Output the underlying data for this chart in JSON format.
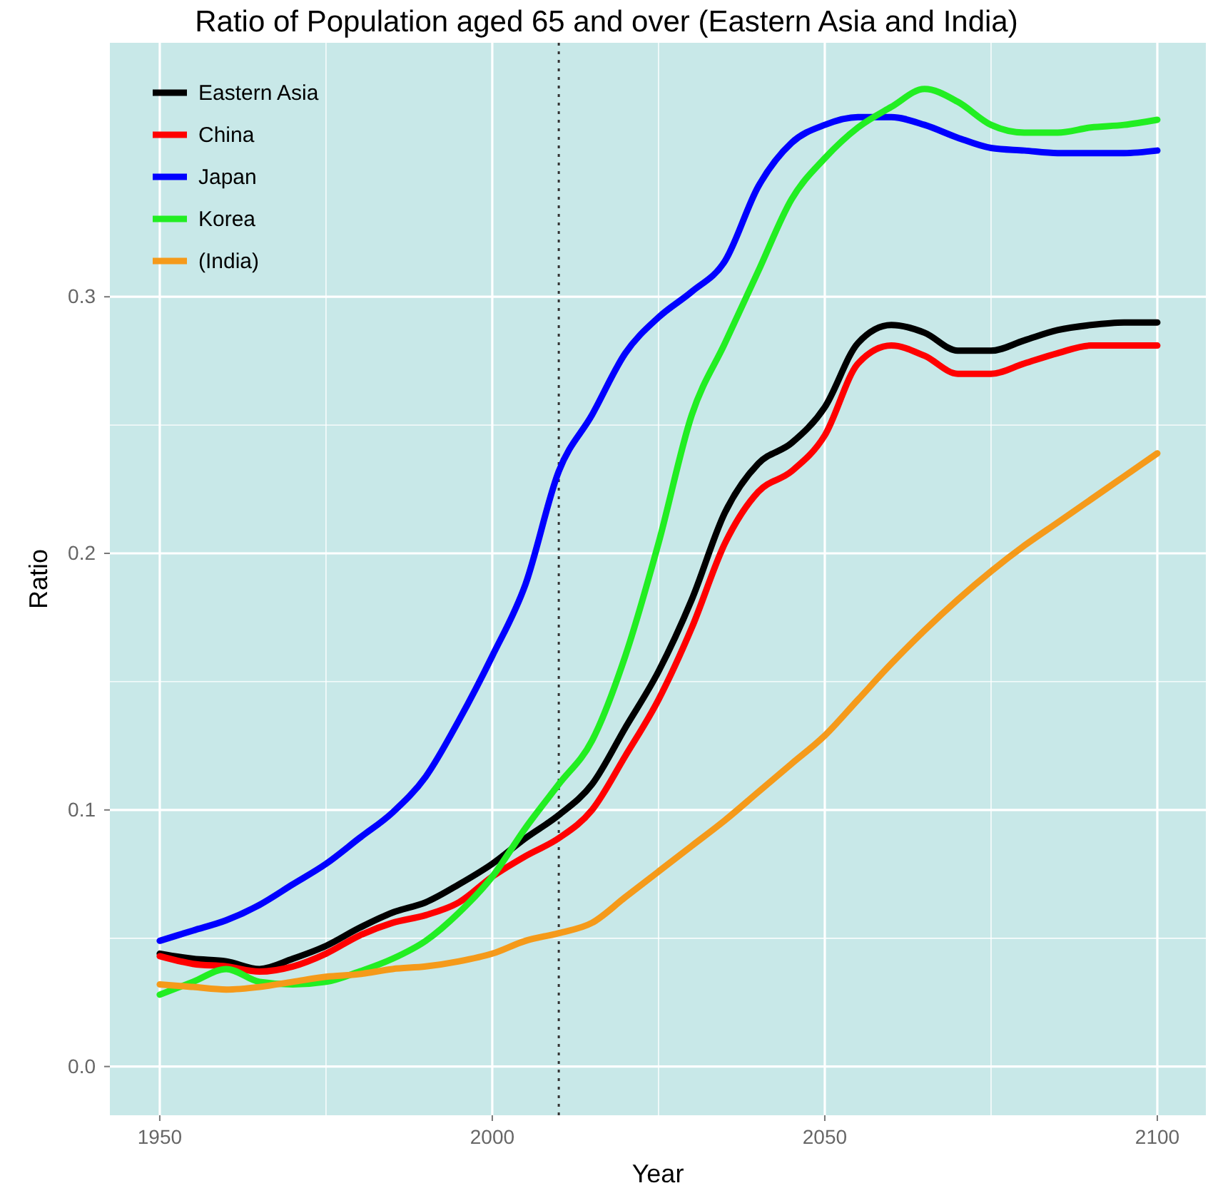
{
  "chart_data": {
    "type": "line",
    "title": "Ratio of Population aged 65 and over (Eastern Asia and India)",
    "xlabel": "Year",
    "ylabel": "Ratio",
    "xlim": [
      1942.5,
      2107.3
    ],
    "ylim": [
      -0.019,
      0.399
    ],
    "xticks": [
      1950,
      2000,
      2050,
      2100
    ],
    "yticks": [
      {
        "value": 0,
        "label": "0.0"
      },
      0.1,
      0.2,
      0.3
    ],
    "x": [
      1950,
      1955,
      1960,
      1965,
      1970,
      1975,
      1980,
      1985,
      1990,
      1995,
      2000,
      2005,
      2010,
      2015,
      2020,
      2025,
      2030,
      2035,
      2040,
      2045,
      2050,
      2055,
      2060,
      2065,
      2070,
      2075,
      2080,
      2085,
      2090,
      2095,
      2100
    ],
    "series": [
      {
        "name": "Eastern Asia",
        "color": "#000000",
        "values": [
          0.044,
          0.042,
          0.041,
          0.038,
          0.042,
          0.047,
          0.054,
          0.06,
          0.064,
          0.071,
          0.079,
          0.089,
          0.098,
          0.11,
          0.132,
          0.154,
          0.182,
          0.216,
          0.235,
          0.243,
          0.257,
          0.282,
          0.289,
          0.286,
          0.279,
          0.279,
          0.283,
          0.287,
          0.289,
          0.29,
          0.29
        ]
      },
      {
        "name": "China",
        "color": "#ff0000",
        "values": [
          0.043,
          0.04,
          0.039,
          0.037,
          0.039,
          0.044,
          0.051,
          0.056,
          0.059,
          0.064,
          0.074,
          0.082,
          0.089,
          0.1,
          0.121,
          0.143,
          0.171,
          0.204,
          0.224,
          0.232,
          0.246,
          0.274,
          0.281,
          0.277,
          0.27,
          0.27,
          0.274,
          0.278,
          0.281,
          0.281,
          0.281
        ]
      },
      {
        "name": "Japan",
        "color": "#0000ff",
        "values": [
          0.049,
          0.053,
          0.057,
          0.063,
          0.071,
          0.079,
          0.089,
          0.099,
          0.113,
          0.135,
          0.16,
          0.188,
          0.232,
          0.254,
          0.278,
          0.292,
          0.302,
          0.314,
          0.343,
          0.36,
          0.367,
          0.37,
          0.37,
          0.367,
          0.362,
          0.358,
          0.357,
          0.356,
          0.356,
          0.356,
          0.357
        ]
      },
      {
        "name": "Korea",
        "color": "#22ee22",
        "values": [
          0.028,
          0.033,
          0.038,
          0.033,
          0.032,
          0.033,
          0.037,
          0.042,
          0.049,
          0.06,
          0.074,
          0.093,
          0.11,
          0.127,
          0.16,
          0.204,
          0.254,
          0.282,
          0.31,
          0.338,
          0.354,
          0.366,
          0.374,
          0.381,
          0.376,
          0.367,
          0.364,
          0.364,
          0.366,
          0.367,
          0.369
        ]
      },
      {
        "name": "(India)",
        "color": "#f59a1a",
        "values": [
          0.032,
          0.031,
          0.03,
          0.031,
          0.033,
          0.035,
          0.036,
          0.038,
          0.039,
          0.041,
          0.044,
          0.049,
          0.052,
          0.056,
          0.066,
          0.076,
          0.086,
          0.096,
          0.107,
          0.118,
          0.129,
          0.143,
          0.157,
          0.17,
          0.182,
          0.193,
          0.203,
          0.212,
          0.221,
          0.23,
          0.239
        ]
      }
    ],
    "ref_lines": [
      {
        "axis": "x",
        "value": 2010,
        "color": "#333333",
        "line_style": "dotted"
      }
    ],
    "grid": true,
    "legend": "top left",
    "line_style": "solid",
    "marker": "none"
  }
}
